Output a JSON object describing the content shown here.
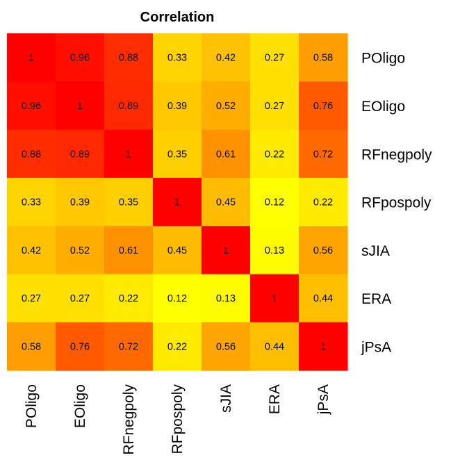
{
  "chart_data": {
    "type": "heatmap",
    "title": "Correlation",
    "rows": [
      "POligo",
      "EOligo",
      "RFnegpoly",
      "RFpospoly",
      "sJIA",
      "ERA",
      "jPsA"
    ],
    "columns": [
      "POligo",
      "EOligo",
      "RFnegpoly",
      "RFpospoly",
      "sJIA",
      "ERA",
      "jPsA"
    ],
    "values": [
      [
        1,
        0.96,
        0.88,
        0.33,
        0.42,
        0.27,
        0.58
      ],
      [
        0.96,
        1,
        0.89,
        0.39,
        0.52,
        0.27,
        0.76
      ],
      [
        0.88,
        0.89,
        1,
        0.35,
        0.61,
        0.22,
        0.72
      ],
      [
        0.33,
        0.39,
        0.35,
        1,
        0.45,
        0.12,
        0.22
      ],
      [
        0.42,
        0.52,
        0.61,
        0.45,
        1,
        0.13,
        0.56
      ],
      [
        0.27,
        0.27,
        0.22,
        0.12,
        0.13,
        1,
        0.44
      ],
      [
        0.58,
        0.76,
        0.72,
        0.22,
        0.56,
        0.44,
        1
      ]
    ],
    "color_scale": {
      "low": "#ffff00",
      "mid": "#ffa500",
      "high": "#ff0000"
    },
    "grid": false,
    "legend": "none"
  }
}
